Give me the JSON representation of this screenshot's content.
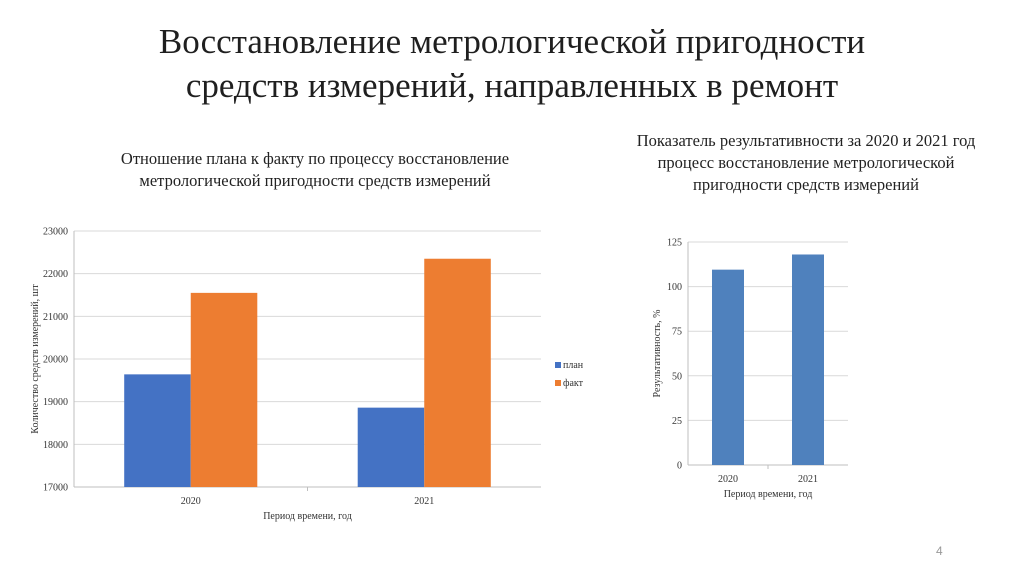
{
  "slide": {
    "title_line1": "Восстановление метрологической пригодности",
    "title_line2": "средств измерений, направленных в ремонт",
    "page_number": "4"
  },
  "chart_data": [
    {
      "type": "bar",
      "title": "Отношение плана к факту по процессу восстановление метрологической пригодности средств измерений",
      "xlabel": "Период времени, год",
      "ylabel": "Количество средств измерений, шт",
      "categories": [
        "2020",
        "2021"
      ],
      "ylim": [
        17000,
        23000
      ],
      "yticks": [
        17000,
        18000,
        19000,
        20000,
        21000,
        22000,
        23000
      ],
      "grid": true,
      "legend": "right",
      "series": [
        {
          "name": "план",
          "values": [
            19640,
            18860
          ],
          "color": "#4472C4"
        },
        {
          "name": "факт",
          "values": [
            21550,
            22350
          ],
          "color": "#ED7D31"
        }
      ]
    },
    {
      "type": "bar",
      "title": "Показатель результативности за 2020 и 2021 год процесс восстановление метрологической пригодности средств измерений",
      "xlabel": "Период времени, год",
      "ylabel": "Результативность, %",
      "categories": [
        "2020",
        "2021"
      ],
      "ylim": [
        0,
        125
      ],
      "yticks": [
        0,
        25,
        50,
        75,
        100,
        125
      ],
      "grid": true,
      "legend": "none",
      "series": [
        {
          "values": [
            109.5,
            118
          ],
          "color": "#4F81BD"
        }
      ]
    }
  ]
}
